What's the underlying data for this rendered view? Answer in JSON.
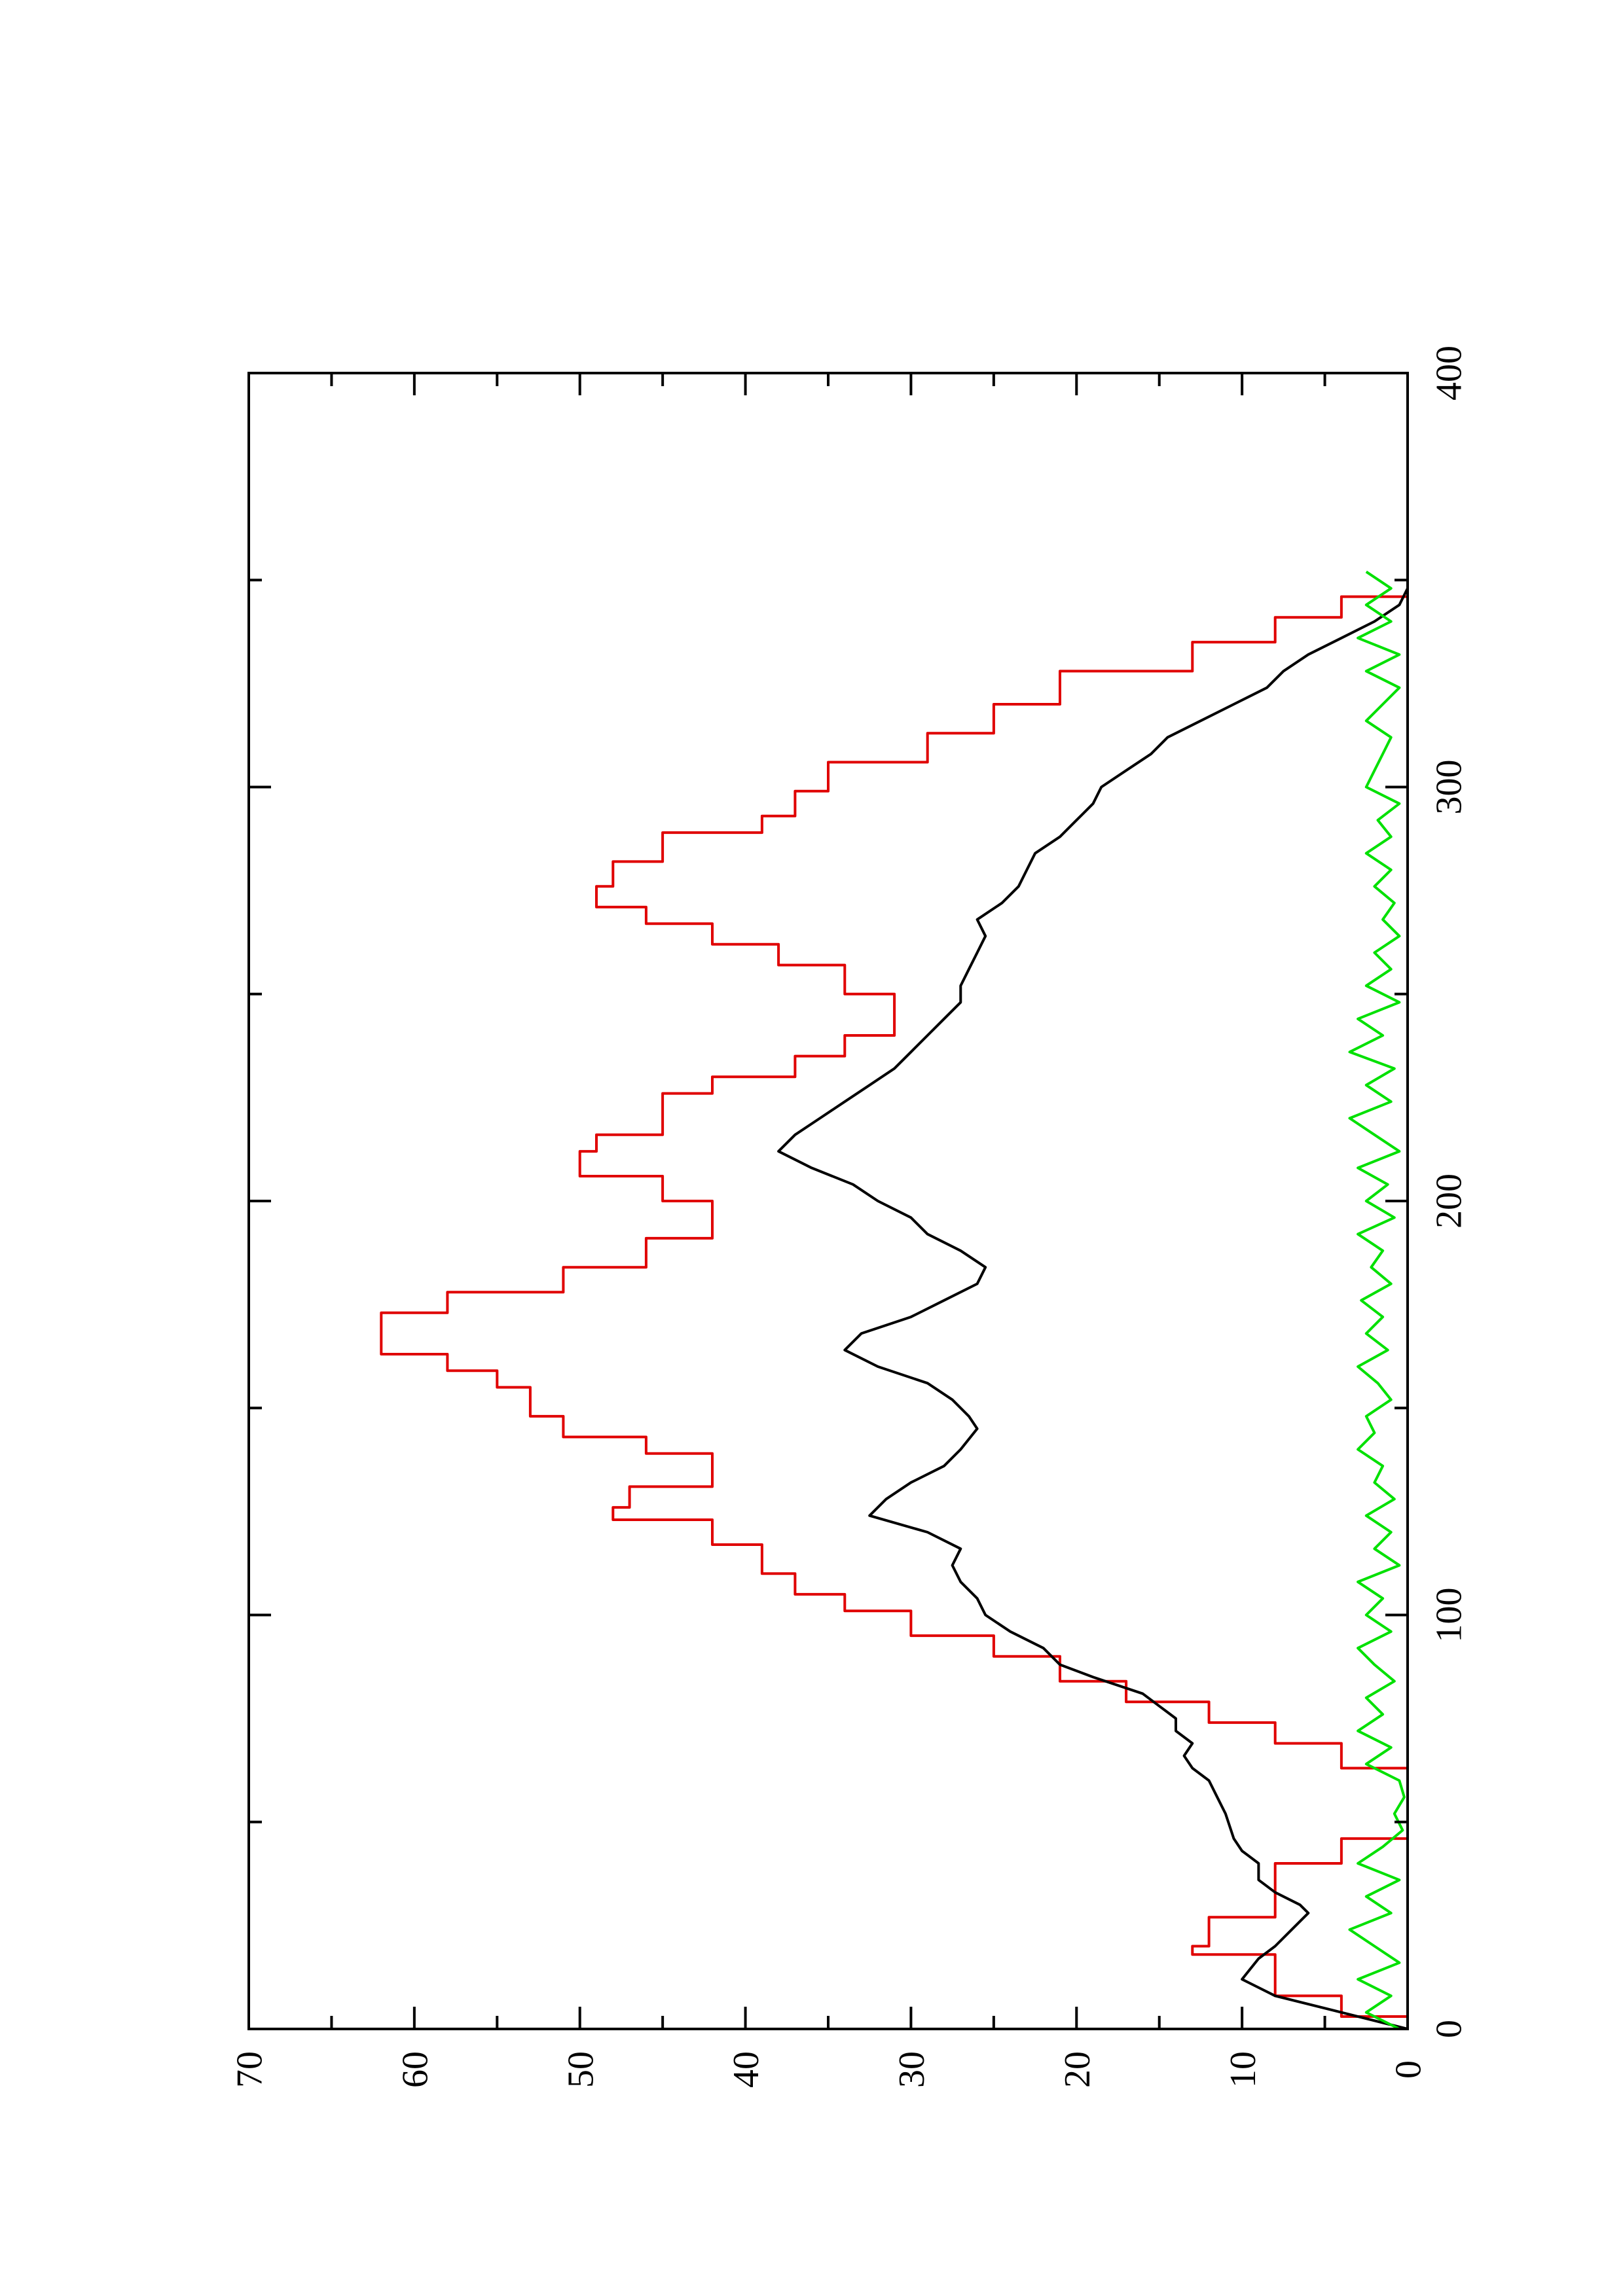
{
  "chart_data": {
    "type": "line",
    "orientation": "rotated-90-counterclockwise",
    "title": "",
    "xlabel": "",
    "ylabel": "",
    "xlim": [
      0,
      400
    ],
    "ylim": [
      0,
      70
    ],
    "x_ticks": [
      0,
      100,
      200,
      300,
      400
    ],
    "x_tick_labels": [
      "0",
      "100",
      "200",
      "300",
      "400"
    ],
    "x_minor_ticks": [
      50,
      150,
      250,
      350
    ],
    "y_ticks": [
      0,
      10,
      20,
      30,
      40,
      50,
      60,
      70
    ],
    "y_tick_labels": [
      "0",
      "10",
      "20",
      "30",
      "40",
      "50",
      "60",
      "70"
    ],
    "y_minor_ticks": [
      5,
      15,
      25,
      35,
      45,
      55,
      65
    ],
    "grid": false,
    "legend": "none",
    "series": [
      {
        "color": "#e00000",
        "style": "step",
        "x": [
          0,
          3,
          8,
          18,
          20,
          27,
          33,
          40,
          46,
          52,
          57,
          60,
          63,
          69,
          74,
          79,
          84,
          90,
          95,
          101,
          105,
          110,
          117,
          123,
          126,
          131,
          139,
          143,
          148,
          155,
          159,
          163,
          168,
          173,
          178,
          184,
          191,
          196,
          200,
          206,
          212,
          216,
          226,
          230,
          235,
          240,
          245,
          250,
          257,
          262,
          267,
          271,
          276,
          282,
          289,
          293,
          299,
          306,
          313,
          320,
          328,
          335,
          341,
          346
        ],
        "y": [
          0,
          4,
          8,
          13,
          12,
          8,
          8,
          4,
          0,
          0,
          0,
          0,
          4,
          8,
          12,
          17,
          21,
          25,
          30,
          34,
          37,
          39,
          42,
          48,
          47,
          42,
          46,
          51,
          53,
          55,
          58,
          62,
          62,
          58,
          51,
          46,
          42,
          42,
          45,
          50,
          49,
          45,
          42,
          37,
          34,
          31,
          31,
          34,
          38,
          42,
          46,
          49,
          48,
          45,
          39,
          37,
          35,
          29,
          25,
          21,
          13,
          8,
          4,
          0
        ]
      },
      {
        "color": "#000000",
        "style": "line",
        "x": [
          0,
          4,
          8,
          12,
          17,
          20,
          24,
          28,
          30,
          33,
          36,
          40,
          43,
          46,
          52,
          56,
          60,
          63,
          66,
          69,
          72,
          75,
          78,
          81,
          85,
          88,
          92,
          96,
          100,
          104,
          108,
          112,
          116,
          120,
          124,
          128,
          132,
          136,
          140,
          145,
          148,
          152,
          156,
          160,
          164,
          168,
          172,
          176,
          180,
          184,
          188,
          192,
          196,
          200,
          204,
          208,
          212,
          216,
          220,
          224,
          228,
          232,
          236,
          240,
          244,
          248,
          252,
          256,
          260,
          264,
          268,
          272,
          276,
          280,
          284,
          288,
          292,
          296,
          300,
          304,
          308,
          312,
          316,
          320,
          324,
          328,
          332,
          336,
          340,
          344,
          348,
          352
        ],
        "y": [
          0,
          4,
          8,
          10,
          9,
          8,
          7,
          6,
          6.5,
          8,
          9,
          9,
          10,
          10.5,
          11,
          11.5,
          12,
          13,
          13.5,
          13,
          14,
          14,
          15,
          16,
          19,
          21,
          22,
          24,
          25.5,
          26,
          27,
          27.5,
          27,
          29,
          32.5,
          31.5,
          30,
          28,
          27,
          26,
          26.5,
          27.5,
          29,
          32,
          34,
          33,
          30,
          28,
          26,
          25.5,
          27,
          29,
          30,
          32,
          33.5,
          36,
          38,
          37,
          35.5,
          34,
          32.5,
          31,
          30,
          29,
          28,
          27,
          27,
          26.5,
          26,
          25.5,
          26,
          24.5,
          23.5,
          23,
          22.5,
          21,
          20,
          19,
          18.5,
          17,
          15.5,
          14.5,
          12.5,
          10.5,
          8.5,
          7.5,
          6,
          4,
          2,
          0.5,
          0,
          0
        ]
      },
      {
        "color": "#00e000",
        "style": "noisy-line",
        "x": [
          0,
          4,
          8,
          12,
          16,
          20,
          24,
          28,
          32,
          36,
          40,
          44,
          48,
          52,
          56,
          60,
          64,
          68,
          72,
          76,
          80,
          84,
          88,
          92,
          96,
          100,
          104,
          108,
          112,
          116,
          120,
          124,
          128,
          132,
          136,
          140,
          144,
          148,
          152,
          156,
          160,
          164,
          168,
          172,
          176,
          180,
          184,
          188,
          192,
          196,
          200,
          204,
          208,
          212,
          216,
          220,
          224,
          228,
          232,
          236,
          240,
          244,
          248,
          252,
          256,
          260,
          264,
          268,
          272,
          276,
          280,
          284,
          288,
          292,
          296,
          300,
          304,
          308,
          312,
          316,
          320,
          324,
          328,
          332,
          336,
          340,
          344,
          348,
          352
        ],
        "y": [
          0.5,
          2.5,
          1,
          3,
          0.5,
          2,
          3.5,
          1,
          2.5,
          0.5,
          3,
          1.5,
          0.3,
          0.8,
          0.2,
          0.5,
          2.5,
          1,
          3,
          1.5,
          2.5,
          0.8,
          2,
          3,
          1,
          2.5,
          1.5,
          3,
          0.5,
          2,
          1,
          2.5,
          0.8,
          2,
          1.5,
          3,
          2,
          2.5,
          1,
          1.8,
          3,
          1.2,
          2.5,
          1.5,
          2.8,
          1,
          2.2,
          1.5,
          3,
          0.8,
          2.5,
          1.2,
          3,
          0.5,
          2,
          3.5,
          1,
          2.5,
          0.8,
          3.5,
          1.5,
          3,
          0.5,
          2.5,
          1,
          2,
          0.5,
          1.5,
          0.8,
          2,
          1,
          2.5,
          1,
          1.8,
          0.5,
          2.5,
          2,
          1.5,
          1,
          2.5,
          1.5,
          0.5,
          2.5,
          0.5,
          3,
          1,
          2.5,
          1,
          2.5
        ]
      }
    ]
  }
}
